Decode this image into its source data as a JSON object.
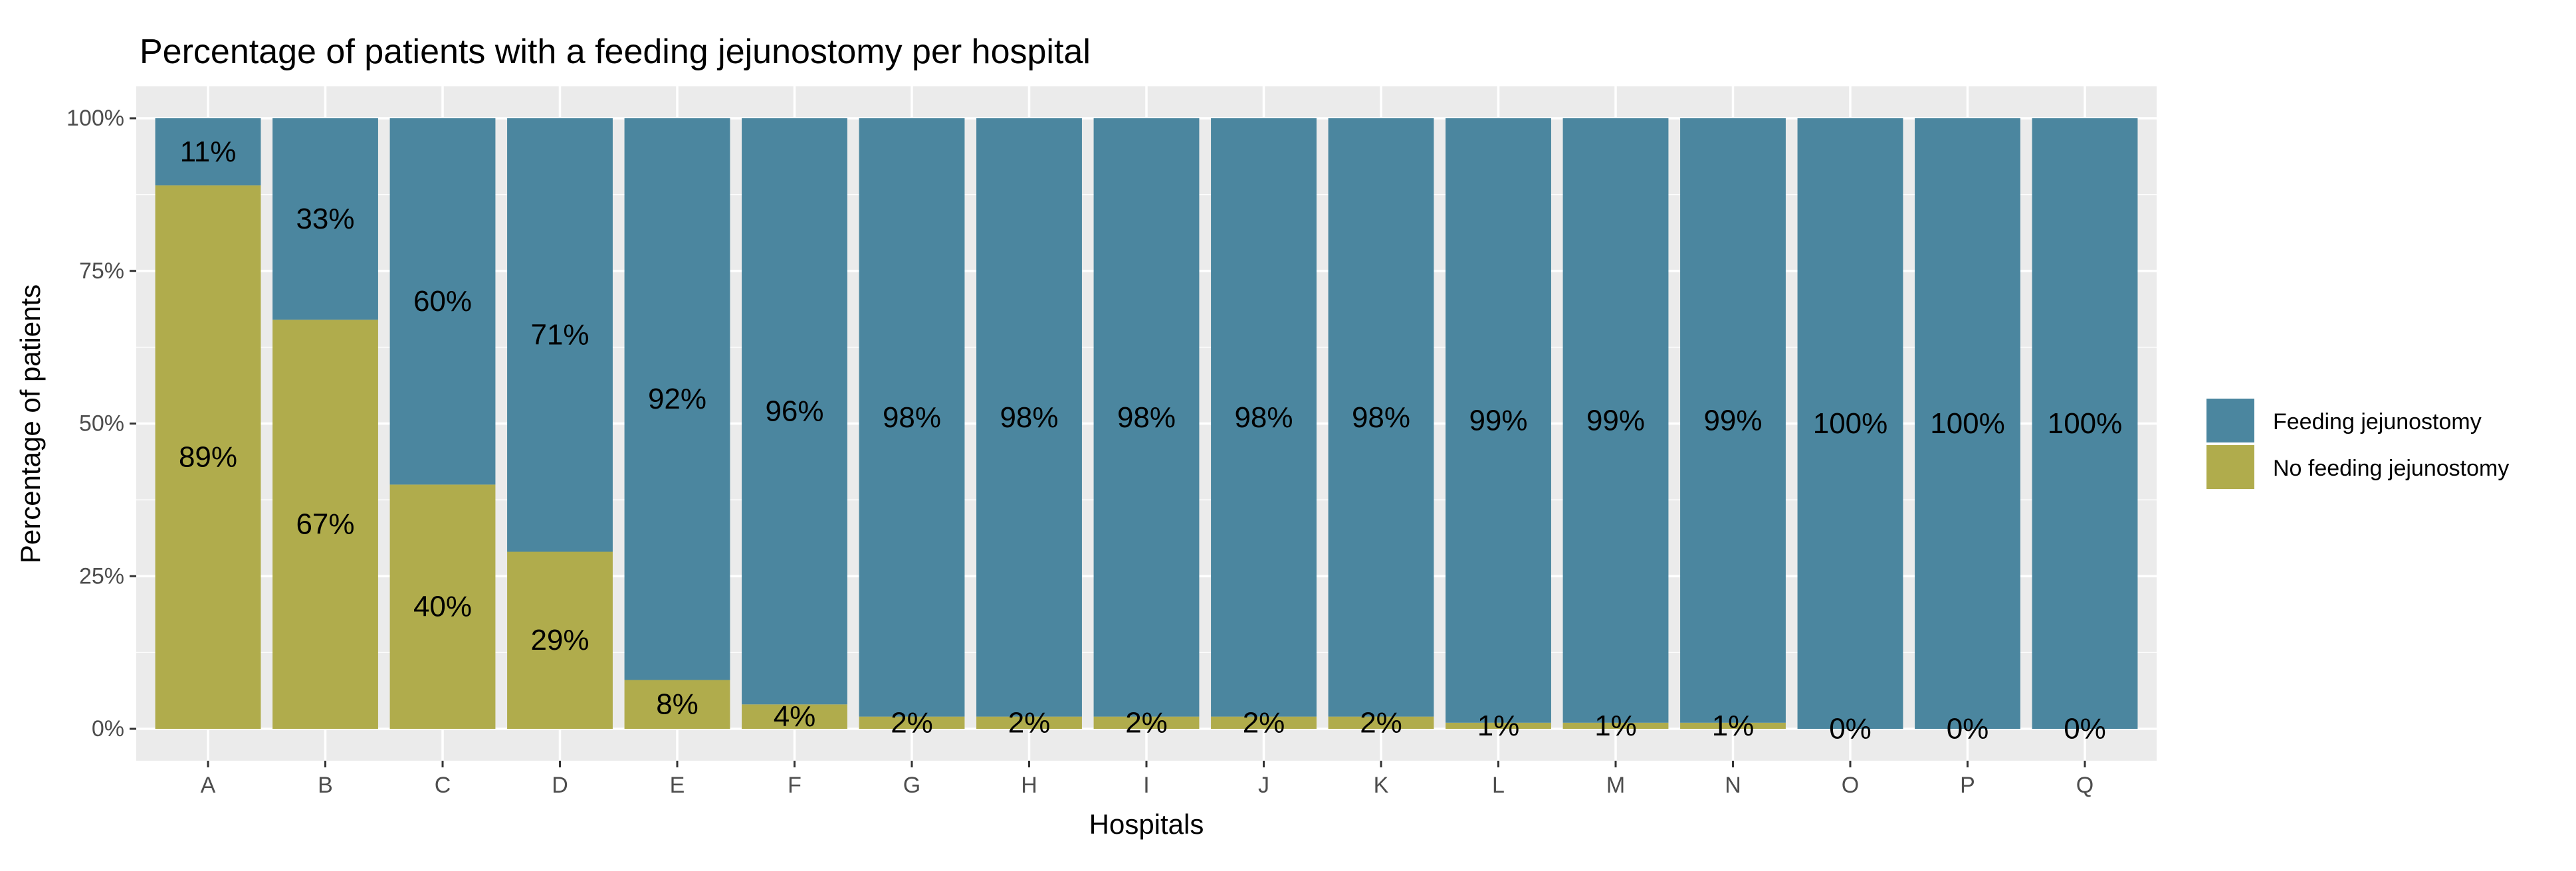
{
  "chart_data": {
    "type": "bar",
    "stacked": true,
    "title": "Percentage of patients with a feeding jejunostomy per hospital",
    "xlabel": "Hospitals",
    "ylabel": "Percentage of patients",
    "ylim": [
      0,
      100
    ],
    "yticks": [
      "0%",
      "25%",
      "50%",
      "75%",
      "100%"
    ],
    "categories": [
      "A",
      "B",
      "C",
      "D",
      "E",
      "F",
      "G",
      "H",
      "I",
      "J",
      "K",
      "L",
      "M",
      "N",
      "O",
      "P",
      "Q"
    ],
    "series": [
      {
        "name": "No feeding jejunostomy",
        "color": "#b0ac4c",
        "values": [
          89,
          67,
          40,
          29,
          8,
          4,
          2,
          2,
          2,
          2,
          2,
          1,
          1,
          1,
          0,
          0,
          0
        ],
        "labels": [
          "89%",
          "67%",
          "40%",
          "29%",
          "8%",
          "4%",
          "2%",
          "2%",
          "2%",
          "2%",
          "2%",
          "1%",
          "1%",
          "1%",
          "0%",
          "0%",
          "0%"
        ]
      },
      {
        "name": "Feeding jejunostomy",
        "color": "#4b869f",
        "values": [
          11,
          33,
          60,
          71,
          92,
          96,
          98,
          98,
          98,
          98,
          98,
          99,
          99,
          99,
          100,
          100,
          100
        ],
        "labels": [
          "11%",
          "33%",
          "60%",
          "71%",
          "92%",
          "96%",
          "98%",
          "98%",
          "98%",
          "98%",
          "98%",
          "99%",
          "99%",
          "99%",
          "100%",
          "100%",
          "100%"
        ]
      }
    ],
    "legend": [
      "Feeding jejunostomy",
      "No feeding jejunostomy"
    ],
    "legend_position": "right",
    "grid": true
  }
}
